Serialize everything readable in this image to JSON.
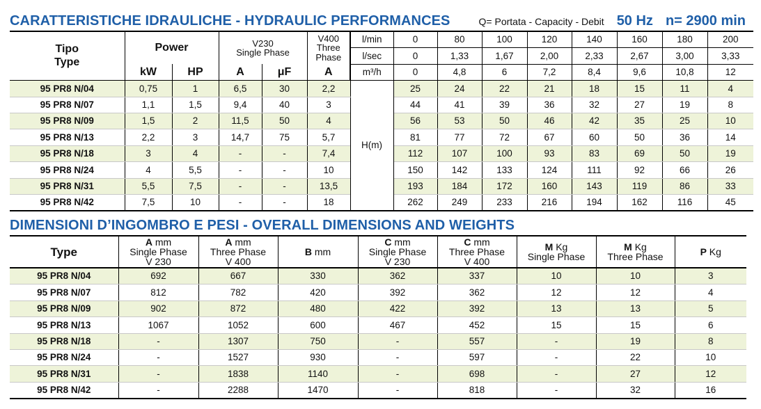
{
  "hydraulic": {
    "title": "CARATTERISTICHE IDRAULICHE - HYDRAULIC PERFORMANCES",
    "capacity_label": "Q= Portata - Capacity - Debit",
    "frequency": "50 Hz",
    "speed": "n= 2900 min",
    "headers": {
      "tipo": "Tipo",
      "type": "Type",
      "power": "Power",
      "kw": "kW",
      "hp": "HP",
      "v230": "V230",
      "single_phase": "Single Phase",
      "a": "A",
      "uf": "μF",
      "v400": "V400",
      "three": "Three",
      "phase": "Phase",
      "a400": "A",
      "lmin_label": "l/min",
      "lsec_label": "l/sec",
      "m3h_label": "m³/h",
      "head_label": "H(m)"
    },
    "flow_lmin": [
      "0",
      "80",
      "100",
      "120",
      "140",
      "160",
      "180",
      "200"
    ],
    "flow_lsec": [
      "0",
      "1,33",
      "1,67",
      "2,00",
      "2,33",
      "2,67",
      "3,00",
      "3,33"
    ],
    "flow_m3h": [
      "0",
      "4,8",
      "6",
      "7,2",
      "8,4",
      "9,6",
      "10,8",
      "12"
    ],
    "rows": [
      {
        "type": "95 PR8 N/04",
        "kw": "0,75",
        "hp": "1",
        "a230": "6,5",
        "uf": "30",
        "a400": "2,2",
        "h": [
          "25",
          "24",
          "22",
          "21",
          "18",
          "15",
          "11",
          "4"
        ]
      },
      {
        "type": "95 PR8 N/07",
        "kw": "1,1",
        "hp": "1,5",
        "a230": "9,4",
        "uf": "40",
        "a400": "3",
        "h": [
          "44",
          "41",
          "39",
          "36",
          "32",
          "27",
          "19",
          "8"
        ]
      },
      {
        "type": "95 PR8 N/09",
        "kw": "1,5",
        "hp": "2",
        "a230": "11,5",
        "uf": "50",
        "a400": "4",
        "h": [
          "56",
          "53",
          "50",
          "46",
          "42",
          "35",
          "25",
          "10"
        ]
      },
      {
        "type": "95 PR8 N/13",
        "kw": "2,2",
        "hp": "3",
        "a230": "14,7",
        "uf": "75",
        "a400": "5,7",
        "h": [
          "81",
          "77",
          "72",
          "67",
          "60",
          "50",
          "36",
          "14"
        ]
      },
      {
        "type": "95 PR8 N/18",
        "kw": "3",
        "hp": "4",
        "a230": "-",
        "uf": "-",
        "a400": "7,4",
        "h": [
          "112",
          "107",
          "100",
          "93",
          "83",
          "69",
          "50",
          "19"
        ]
      },
      {
        "type": "95 PR8 N/24",
        "kw": "4",
        "hp": "5,5",
        "a230": "-",
        "uf": "-",
        "a400": "10",
        "h": [
          "150",
          "142",
          "133",
          "124",
          "111",
          "92",
          "66",
          "26"
        ]
      },
      {
        "type": "95 PR8 N/31",
        "kw": "5,5",
        "hp": "7,5",
        "a230": "-",
        "uf": "-",
        "a400": "13,5",
        "h": [
          "193",
          "184",
          "172",
          "160",
          "143",
          "119",
          "86",
          "33"
        ]
      },
      {
        "type": "95 PR8 N/42",
        "kw": "7,5",
        "hp": "10",
        "a230": "-",
        "uf": "-",
        "a400": "18",
        "h": [
          "262",
          "249",
          "233",
          "216",
          "194",
          "162",
          "116",
          "45"
        ]
      }
    ]
  },
  "dimensions": {
    "title": "DIMENSIONI D’INGOMBRO E PESI - OVERALL DIMENSIONS AND WEIGHTS",
    "headers": {
      "type": "Type",
      "a1_letter": "A",
      "a1_unit": " mm",
      "a1_l2": "Single Phase",
      "a1_l3": "V 230",
      "a2_letter": "A",
      "a2_unit": " mm",
      "a2_l2": "Three Phase",
      "a2_l3": "V 400",
      "b_letter": "B",
      "b_unit": " mm",
      "c1_letter": "C",
      "c1_unit": " mm",
      "c1_l2": "Single Phase",
      "c1_l3": "V 230",
      "c2_letter": "C",
      "c2_unit": " mm",
      "c2_l2": "Three Phase",
      "c2_l3": "V 400",
      "m1_letter": "M",
      "m1_unit": " Kg",
      "m1_l2": "Single Phase",
      "m2_letter": "M",
      "m2_unit": " Kg",
      "m2_l2": "Three Phase",
      "p_letter": "P",
      "p_unit": " Kg"
    },
    "rows": [
      {
        "type": "95 PR8 N/04",
        "a230": "692",
        "a400": "667",
        "b": "330",
        "c230": "362",
        "c400": "337",
        "m1": "10",
        "m3": "10",
        "p": "3"
      },
      {
        "type": "95 PR8 N/07",
        "a230": "812",
        "a400": "782",
        "b": "420",
        "c230": "392",
        "c400": "362",
        "m1": "12",
        "m3": "12",
        "p": "4"
      },
      {
        "type": "95 PR8 N/09",
        "a230": "902",
        "a400": "872",
        "b": "480",
        "c230": "422",
        "c400": "392",
        "m1": "13",
        "m3": "13",
        "p": "5"
      },
      {
        "type": "95 PR8 N/13",
        "a230": "1067",
        "a400": "1052",
        "b": "600",
        "c230": "467",
        "c400": "452",
        "m1": "15",
        "m3": "15",
        "p": "6"
      },
      {
        "type": "95 PR8 N/18",
        "a230": "-",
        "a400": "1307",
        "b": "750",
        "c230": "-",
        "c400": "557",
        "m1": "-",
        "m3": "19",
        "p": "8"
      },
      {
        "type": "95 PR8 N/24",
        "a230": "-",
        "a400": "1527",
        "b": "930",
        "c230": "-",
        "c400": "597",
        "m1": "-",
        "m3": "22",
        "p": "10"
      },
      {
        "type": "95 PR8 N/31",
        "a230": "-",
        "a400": "1838",
        "b": "1140",
        "c230": "-",
        "c400": "698",
        "m1": "-",
        "m3": "27",
        "p": "12"
      },
      {
        "type": "95 PR8 N/42",
        "a230": "-",
        "a400": "2288",
        "b": "1470",
        "c230": "-",
        "c400": "818",
        "m1": "-",
        "m3": "32",
        "p": "16"
      }
    ]
  }
}
